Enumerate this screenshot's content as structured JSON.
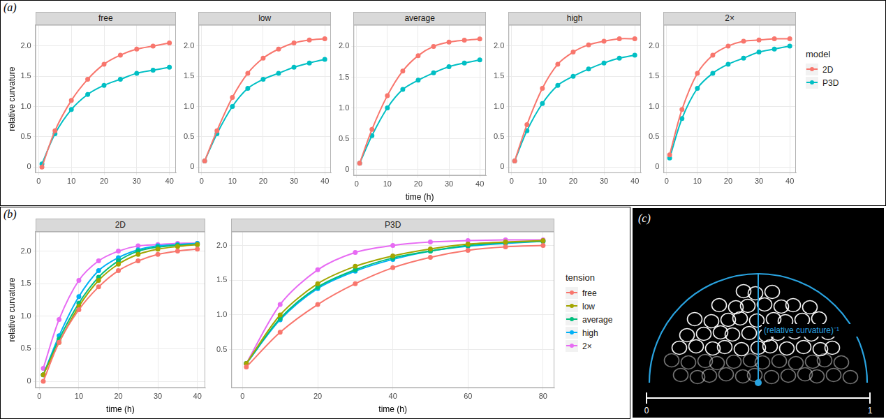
{
  "chart_data": [
    {
      "type": "line",
      "panel": "(a)",
      "title": "free",
      "y_label": "relative curvature",
      "grid": true,
      "xlim": [
        -1,
        42
      ],
      "xticks": [
        0,
        10,
        20,
        30,
        40
      ],
      "ylim": [
        -0.1,
        2.35
      ],
      "yticks": [
        0,
        0.5,
        {
          "value": 1,
          "label": "1.0"
        },
        1.5,
        {
          "value": 2,
          "label": "2.0"
        }
      ],
      "x": [
        1,
        5,
        10,
        15,
        20,
        25,
        30,
        35,
        40
      ],
      "series": [
        {
          "name": "2D",
          "color": "#F8766D",
          "values": [
            0,
            0.6,
            1.1,
            1.45,
            1.7,
            1.85,
            1.95,
            2.0,
            2.05
          ]
        },
        {
          "name": "P3D",
          "color": "#00BFC4",
          "values": [
            0.05,
            0.55,
            0.95,
            1.2,
            1.35,
            1.45,
            1.55,
            1.6,
            1.65
          ]
        }
      ]
    },
    {
      "type": "line",
      "title": "low",
      "grid": true,
      "xlim": [
        -1,
        42
      ],
      "xticks": [
        0,
        10,
        20,
        30,
        40
      ],
      "ylim": [
        -0.1,
        2.35
      ],
      "yticks": [
        0,
        0.5,
        {
          "value": 1,
          "label": "1.0"
        },
        1.5,
        {
          "value": 2,
          "label": "2.0"
        }
      ],
      "x": [
        1,
        5,
        10,
        15,
        20,
        25,
        30,
        35,
        40
      ],
      "series": [
        {
          "name": "2D",
          "color": "#F8766D",
          "values": [
            0.1,
            0.6,
            1.15,
            1.55,
            1.8,
            1.95,
            2.05,
            2.1,
            2.12
          ]
        },
        {
          "name": "P3D",
          "color": "#00BFC4",
          "values": [
            0.1,
            0.55,
            1.0,
            1.3,
            1.45,
            1.55,
            1.65,
            1.72,
            1.78
          ]
        }
      ]
    },
    {
      "type": "line",
      "title": "average",
      "x_label": "time (h)",
      "grid": true,
      "xlim": [
        -1,
        42
      ],
      "xticks": [
        0,
        10,
        20,
        30,
        40
      ],
      "ylim": [
        -0.1,
        2.35
      ],
      "yticks": [
        0,
        0.5,
        {
          "value": 1,
          "label": "1.0"
        },
        1.5,
        {
          "value": 2,
          "label": "2.0"
        }
      ],
      "x": [
        1,
        5,
        10,
        15,
        20,
        25,
        30,
        35,
        40
      ],
      "series": [
        {
          "name": "2D",
          "color": "#F8766D",
          "values": [
            0.1,
            0.65,
            1.2,
            1.6,
            1.85,
            2.0,
            2.07,
            2.1,
            2.12
          ]
        },
        {
          "name": "P3D",
          "color": "#00BFC4",
          "values": [
            0.1,
            0.55,
            1.0,
            1.3,
            1.45,
            1.57,
            1.67,
            1.73,
            1.78
          ]
        }
      ]
    },
    {
      "type": "line",
      "title": "high",
      "grid": true,
      "xlim": [
        -1,
        42
      ],
      "xticks": [
        0,
        10,
        20,
        30,
        40
      ],
      "ylim": [
        -0.1,
        2.35
      ],
      "yticks": [
        0,
        0.5,
        {
          "value": 1,
          "label": "1.0"
        },
        1.5,
        {
          "value": 2,
          "label": "2.0"
        }
      ],
      "x": [
        1,
        5,
        10,
        15,
        20,
        25,
        30,
        35,
        40
      ],
      "series": [
        {
          "name": "2D",
          "color": "#F8766D",
          "values": [
            0.1,
            0.7,
            1.3,
            1.7,
            1.9,
            2.02,
            2.08,
            2.12,
            2.12
          ]
        },
        {
          "name": "P3D",
          "color": "#00BFC4",
          "values": [
            0.1,
            0.6,
            1.05,
            1.35,
            1.5,
            1.62,
            1.72,
            1.8,
            1.85
          ]
        }
      ]
    },
    {
      "type": "line",
      "title": "2×",
      "grid": true,
      "legend": "right",
      "legend_title": "model",
      "xlim": [
        -1,
        42
      ],
      "xticks": [
        0,
        10,
        20,
        30,
        40
      ],
      "ylim": [
        -0.1,
        2.35
      ],
      "yticks": [
        0,
        0.5,
        {
          "value": 1,
          "label": "1.0"
        },
        1.5,
        {
          "value": 2,
          "label": "2.0"
        }
      ],
      "x": [
        1,
        5,
        10,
        15,
        20,
        25,
        30,
        35,
        40
      ],
      "series": [
        {
          "name": "2D",
          "color": "#F8766D",
          "values": [
            0.2,
            0.95,
            1.55,
            1.85,
            2.0,
            2.08,
            2.1,
            2.12,
            2.12
          ]
        },
        {
          "name": "P3D",
          "color": "#00BFC4",
          "values": [
            0.15,
            0.8,
            1.3,
            1.55,
            1.7,
            1.8,
            1.9,
            1.95,
            2.0
          ]
        }
      ]
    },
    {
      "type": "line",
      "panel": "(b)",
      "title": "2D",
      "x_label": "time (h)",
      "y_label": "relative curvature",
      "grid": true,
      "xlim": [
        -1,
        42
      ],
      "xticks": [
        0,
        10,
        20,
        30,
        40
      ],
      "ylim": [
        -0.1,
        2.3
      ],
      "yticks": [
        0,
        0.5,
        {
          "value": 1,
          "label": "1.0"
        },
        1.5,
        {
          "value": 2,
          "label": "2.0"
        }
      ],
      "x": [
        1,
        5,
        10,
        15,
        20,
        25,
        30,
        35,
        40
      ],
      "series": [
        {
          "name": "free",
          "color": "#F8766D",
          "values": [
            0,
            0.6,
            1.1,
            1.45,
            1.7,
            1.85,
            1.95,
            2.0,
            2.03
          ]
        },
        {
          "name": "low",
          "color": "#A3A500",
          "values": [
            0.1,
            0.6,
            1.15,
            1.55,
            1.8,
            1.95,
            2.03,
            2.07,
            2.1
          ]
        },
        {
          "name": "average",
          "color": "#00BF7D",
          "values": [
            0.1,
            0.65,
            1.2,
            1.6,
            1.85,
            2.0,
            2.06,
            2.09,
            2.1
          ]
        },
        {
          "name": "high",
          "color": "#00B0F6",
          "values": [
            0.1,
            0.7,
            1.3,
            1.7,
            1.9,
            2.02,
            2.08,
            2.1,
            2.12
          ]
        },
        {
          "name": "2×",
          "color": "#E76BF3",
          "values": [
            0.2,
            0.95,
            1.55,
            1.85,
            2.0,
            2.08,
            2.1,
            2.12,
            2.12
          ]
        }
      ]
    },
    {
      "type": "line",
      "title": "P3D",
      "x_label": "time (h)",
      "grid": true,
      "legend": "right",
      "legend_title": "tension",
      "xlim": [
        -3,
        83
      ],
      "xticks": [
        0,
        20,
        40,
        60,
        80
      ],
      "ylim": [
        -0.05,
        2.2
      ],
      "yticks": [
        0.5,
        {
          "value": 1,
          "label": "1.0"
        },
        1.5,
        {
          "value": 2,
          "label": "2.0"
        }
      ],
      "x": [
        1,
        10,
        20,
        30,
        40,
        50,
        60,
        70,
        80
      ],
      "series": [
        {
          "name": "free",
          "color": "#F8766D",
          "values": [
            0.25,
            0.75,
            1.15,
            1.45,
            1.68,
            1.83,
            1.93,
            1.98,
            2.0
          ]
        },
        {
          "name": "low",
          "color": "#A3A500",
          "values": [
            0.3,
            1.0,
            1.45,
            1.7,
            1.85,
            1.95,
            2.02,
            2.05,
            2.07
          ]
        },
        {
          "name": "average",
          "color": "#00BF7D",
          "values": [
            0.3,
            0.95,
            1.4,
            1.65,
            1.82,
            1.92,
            2.0,
            2.04,
            2.06
          ]
        },
        {
          "name": "high",
          "color": "#00B0F6",
          "values": [
            0.3,
            0.93,
            1.38,
            1.63,
            1.8,
            1.92,
            1.99,
            2.03,
            2.06
          ]
        },
        {
          "name": "2×",
          "color": "#E76BF3",
          "values": [
            0.3,
            1.15,
            1.65,
            1.9,
            2.0,
            2.05,
            2.07,
            2.08,
            2.08
          ]
        }
      ]
    }
  ],
  "diagram": {
    "panel": "(c)",
    "label": "(relative curvature)⁻¹",
    "scale_bar": [
      0,
      1
    ]
  }
}
